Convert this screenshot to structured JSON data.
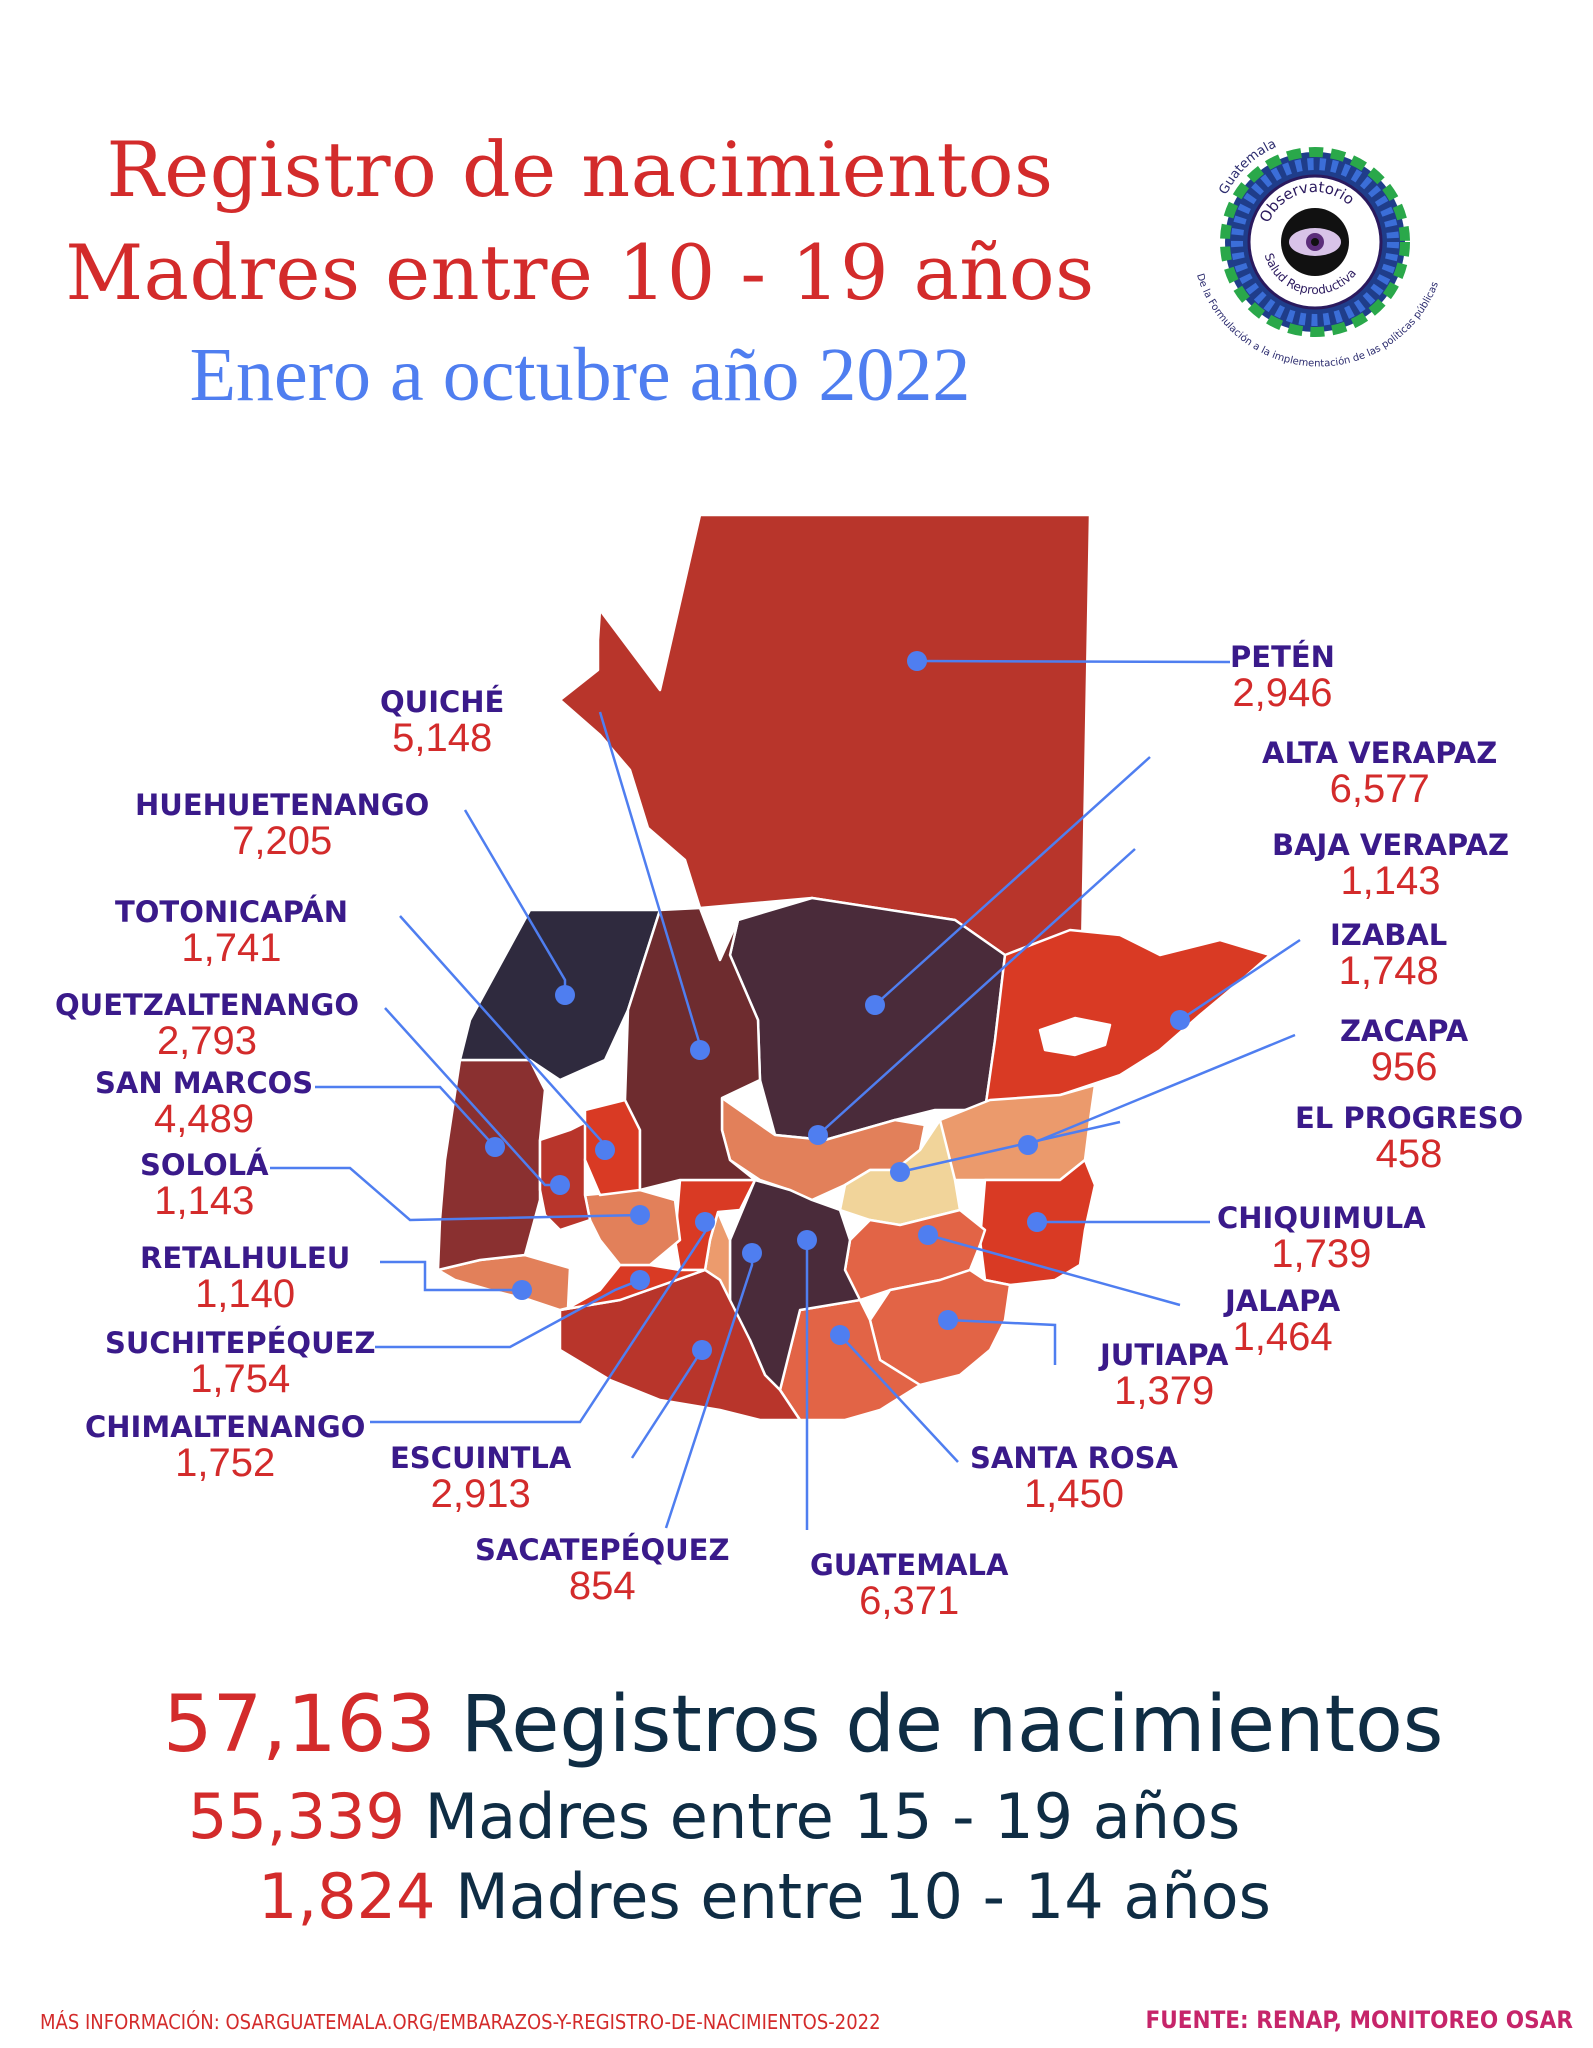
{
  "header": {
    "title_line1": "Registro de nacimientos",
    "title_line2": "Madres entre 10 - 19 años",
    "subtitle": "Enero a octubre año 2022"
  },
  "logo": {
    "country": "Guatemala",
    "name_line1": "Observatorio",
    "name_line2": "Salud Reproductiva",
    "tagline": "De la Formulación a la implementación de las políticas públicas"
  },
  "map": {
    "line_color": "#4f7ef0",
    "departments": [
      {
        "name": "PETÉN",
        "value": "2,946",
        "color": "#b8352b"
      },
      {
        "name": "ALTA VERAPAZ",
        "value": "6,577",
        "color": "#4a2b3a"
      },
      {
        "name": "BAJA VERAPAZ",
        "value": "1,143",
        "color": "#e2805a"
      },
      {
        "name": "IZABAL",
        "value": "1,748",
        "color": "#d93a24"
      },
      {
        "name": "ZACAPA",
        "value": "956",
        "color": "#eb9a6c"
      },
      {
        "name": "EL PROGRESO",
        "value": "458",
        "color": "#f1d49a"
      },
      {
        "name": "CHIQUIMULA",
        "value": "1,739",
        "color": "#d93a24"
      },
      {
        "name": "JALAPA",
        "value": "1,464",
        "color": "#e26446"
      },
      {
        "name": "JUTIAPA",
        "value": "1,379",
        "color": "#e26446"
      },
      {
        "name": "SANTA ROSA",
        "value": "1,450",
        "color": "#e26446"
      },
      {
        "name": "GUATEMALA",
        "value": "6,371",
        "color": "#4a2b3a"
      },
      {
        "name": "SACATEPÉQUEZ",
        "value": "854",
        "color": "#ec9b6d"
      },
      {
        "name": "ESCUINTLA",
        "value": "2,913",
        "color": "#b8352b"
      },
      {
        "name": "CHIMALTENANGO",
        "value": "1,752",
        "color": "#d93a24"
      },
      {
        "name": "SUCHITEPÉQUEZ",
        "value": "1,754",
        "color": "#d93a24"
      },
      {
        "name": "RETALHULEU",
        "value": "1,140",
        "color": "#e2805a"
      },
      {
        "name": "SOLOLÁ",
        "value": "1,143",
        "color": "#e2805a"
      },
      {
        "name": "SAN MARCOS",
        "value": "4,489",
        "color": "#8a3030"
      },
      {
        "name": "QUETZALTENANGO",
        "value": "2,793",
        "color": "#b8352b"
      },
      {
        "name": "TOTONICAPÁN",
        "value": "1,741",
        "color": "#d93a24"
      },
      {
        "name": "HUEHUETENANGO",
        "value": "7,205",
        "color": "#2f2a3e"
      },
      {
        "name": "QUICHÉ",
        "value": "5,148",
        "color": "#6e2c2f"
      }
    ]
  },
  "summary": {
    "total_value": "57,163",
    "total_label": "Registros de nacimientos",
    "group1_value": "55,339",
    "group1_label": "Madres entre 15 - 19 años",
    "group2_value": "1,824",
    "group2_label": "Madres entre 10 - 14 años"
  },
  "footer": {
    "more_info": "MÁS INFORMACIÓN: OSARGUATEMALA.ORG/EMBARAZOS-Y-REGISTRO-DE-NACIMIENTOS-2022",
    "source": "FUENTE: RENAP, MONITOREO OSAR"
  }
}
